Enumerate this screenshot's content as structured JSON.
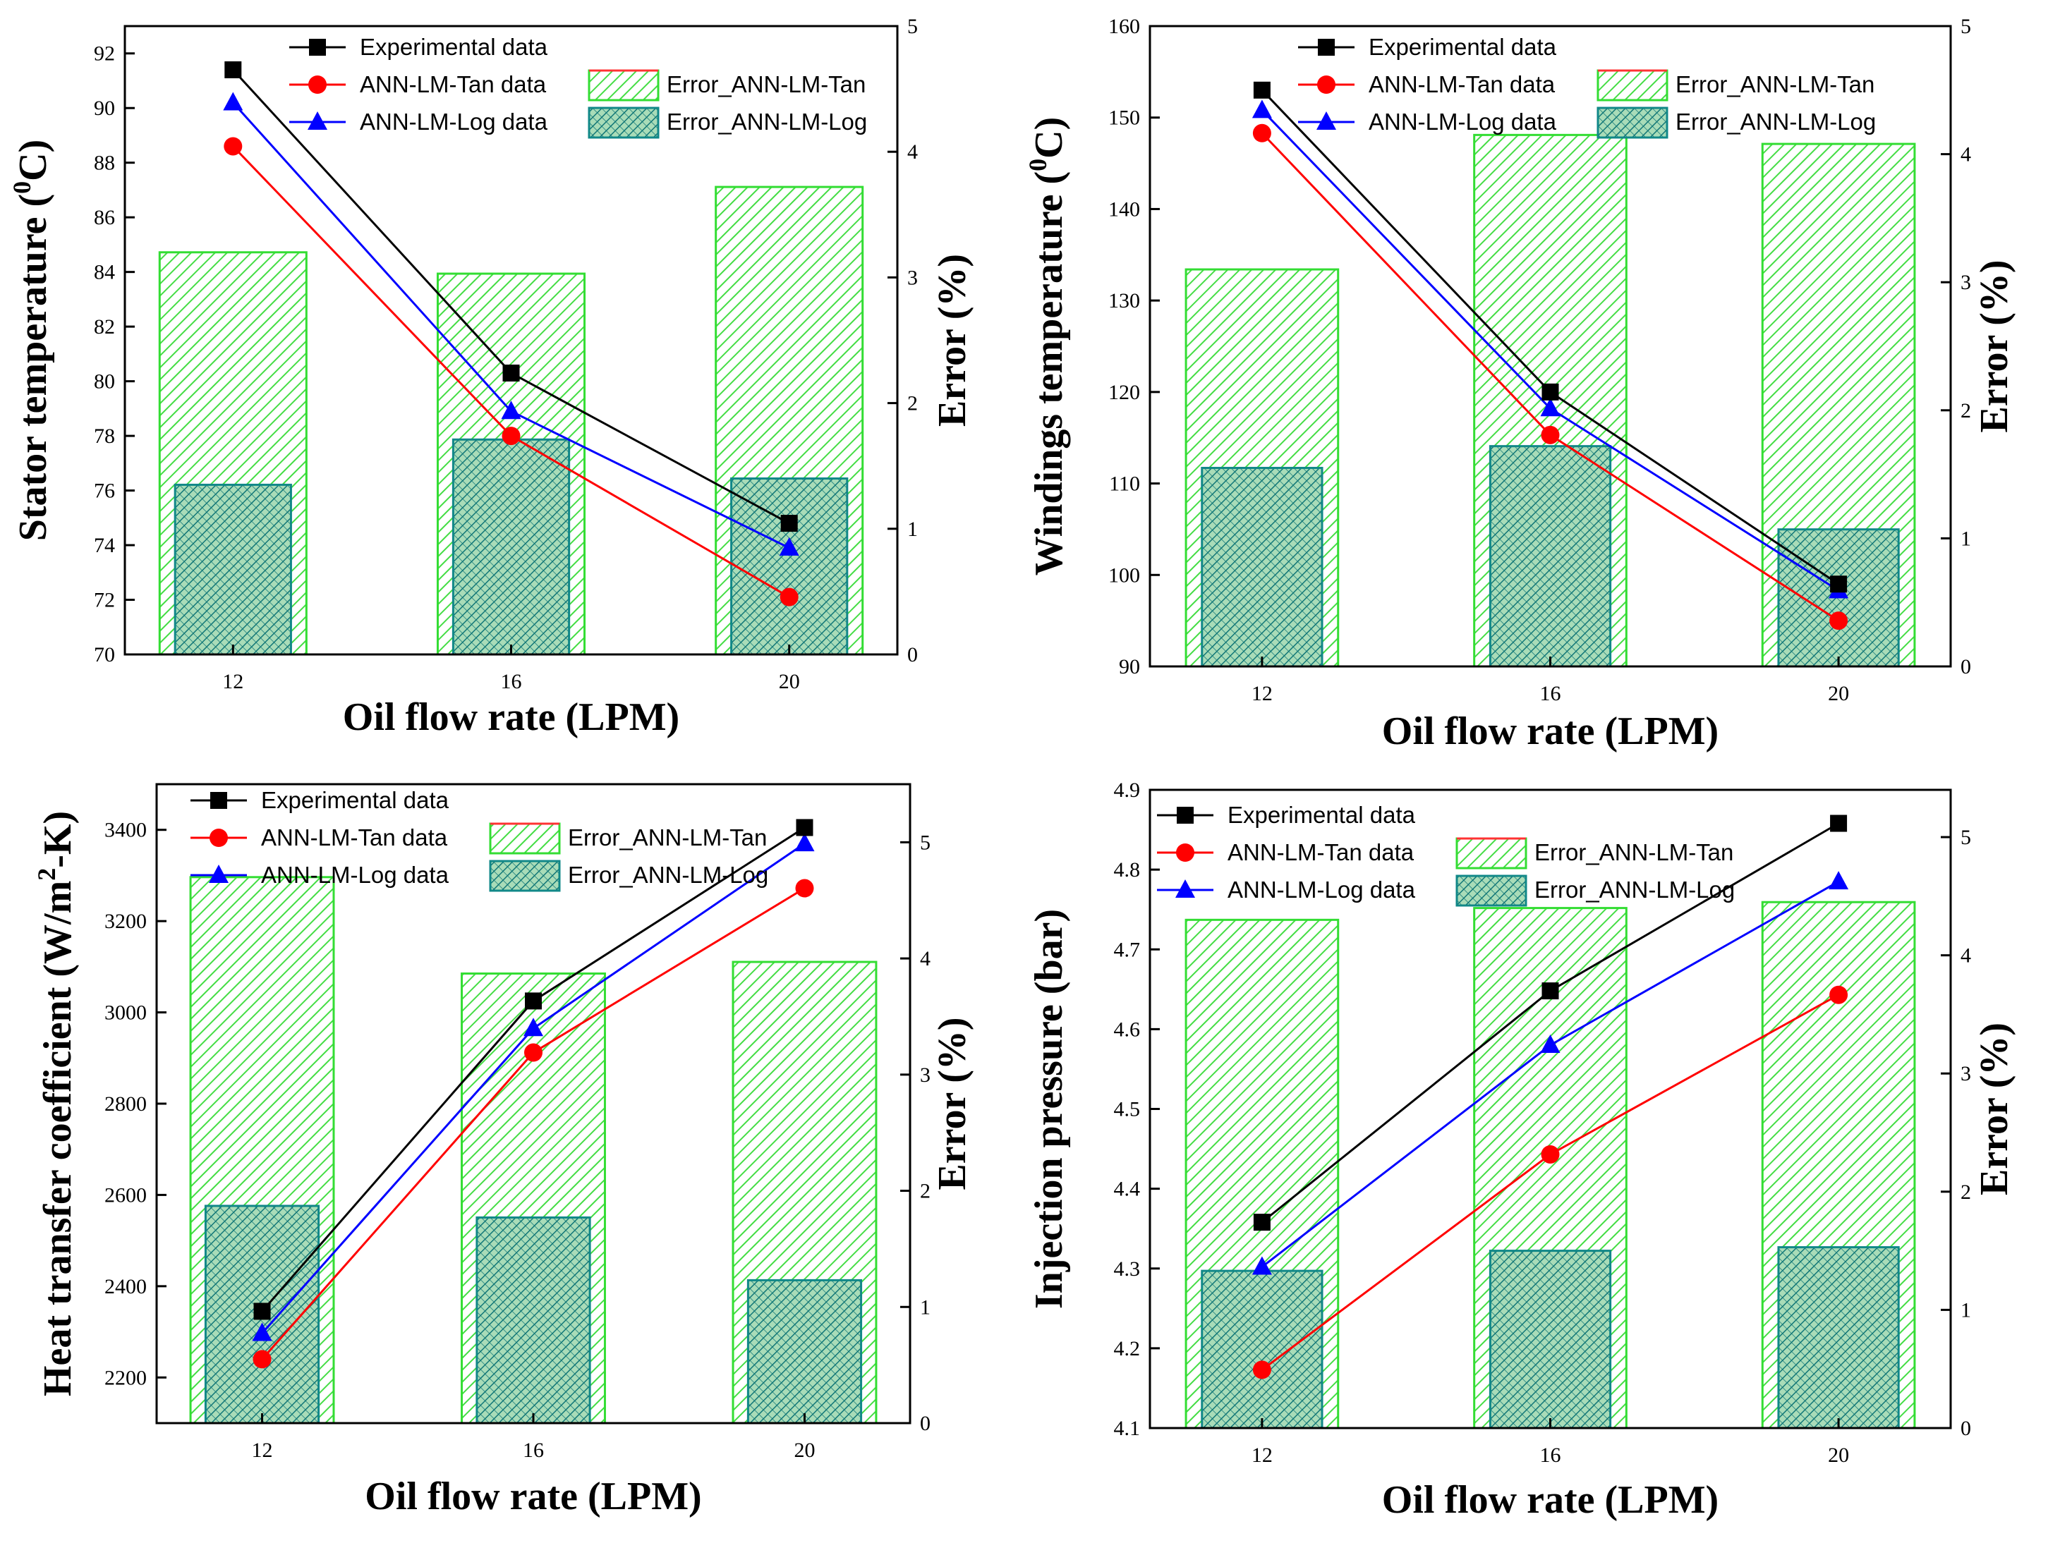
{
  "colors": {
    "experimental": "#000000",
    "ann_tan": "#ff0000",
    "ann_log": "#0000ff",
    "bar_tan_stroke": "#33dd33",
    "bar_tan_hatch": "#44dd44",
    "bar_log_stroke": "#118888",
    "bar_log_hatch": "#117777"
  },
  "legend": {
    "experimental": "Experimental data",
    "ann_tan": "ANN-LM-Tan data",
    "ann_log": "ANN-LM-Log data",
    "error_tan": "Error_ANN-LM-Tan",
    "error_log": "Error_ANN-LM-Log"
  },
  "chart_data": [
    {
      "type": "bar",
      "id": "stator",
      "xlabel": "Oil flow rate (LPM)",
      "ylabel": {
        "main": "Stator temperature (",
        "sup": "0",
        "tail": "C)"
      },
      "y2label": "Error (%)",
      "categories": [
        "12",
        "16",
        "20"
      ],
      "ylim": [
        70,
        93
      ],
      "yticks": [
        "70",
        "72",
        "74",
        "76",
        "78",
        "80",
        "82",
        "84",
        "86",
        "88",
        "90",
        "92"
      ],
      "y2lim": [
        0,
        5
      ],
      "y2ticks": [
        "0",
        "1",
        "2",
        "3",
        "4",
        "5"
      ],
      "series": [
        {
          "name": "Experimental data",
          "key": "experimental",
          "kind": "line",
          "marker": "square",
          "values": [
            91.4,
            80.3,
            74.8
          ]
        },
        {
          "name": "ANN-LM-Tan data",
          "key": "ann_tan",
          "kind": "line",
          "marker": "circle",
          "values": [
            88.6,
            78.0,
            72.1
          ]
        },
        {
          "name": "ANN-LM-Log data",
          "key": "ann_log",
          "kind": "line",
          "marker": "triangle",
          "values": [
            90.2,
            78.9,
            73.9
          ]
        },
        {
          "name": "Error_ANN-LM-Tan",
          "key": "error_tan",
          "kind": "bar",
          "values": [
            3.2,
            3.03,
            3.72
          ]
        },
        {
          "name": "Error_ANN-LM-Log",
          "key": "error_log",
          "kind": "bar",
          "values": [
            1.35,
            1.71,
            1.4
          ]
        }
      ]
    },
    {
      "type": "bar",
      "id": "windings",
      "xlabel": "Oil flow rate (LPM)",
      "ylabel": {
        "main": "Windings temperature (",
        "sup": "0",
        "tail": "C)"
      },
      "y2label": "Error (%)",
      "categories": [
        "12",
        "16",
        "20"
      ],
      "ylim": [
        90,
        160
      ],
      "yticks": [
        "90",
        "100",
        "110",
        "120",
        "130",
        "140",
        "150",
        "160"
      ],
      "y2lim": [
        0,
        5
      ],
      "y2ticks": [
        "0",
        "1",
        "2",
        "3",
        "4",
        "5"
      ],
      "series": [
        {
          "name": "Experimental data",
          "key": "experimental",
          "kind": "line",
          "marker": "square",
          "values": [
            153,
            120,
            99
          ]
        },
        {
          "name": "ANN-LM-Tan data",
          "key": "ann_tan",
          "kind": "line",
          "marker": "circle",
          "values": [
            148.3,
            115.3,
            95
          ]
        },
        {
          "name": "ANN-LM-Log data",
          "key": "ann_log",
          "kind": "line",
          "marker": "triangle",
          "values": [
            150.8,
            118.2,
            98.3
          ]
        },
        {
          "name": "Error_ANN-LM-Tan",
          "key": "error_tan",
          "kind": "bar",
          "values": [
            3.1,
            4.15,
            4.08
          ]
        },
        {
          "name": "Error_ANN-LM-Log",
          "key": "error_log",
          "kind": "bar",
          "values": [
            1.55,
            1.72,
            1.07
          ]
        }
      ]
    },
    {
      "type": "bar",
      "id": "htc",
      "xlabel": "Oil flow rate (LPM)",
      "ylabel": {
        "main": "Heat transfer coefficient (W/m",
        "sup": "2",
        "tail": "-K)"
      },
      "y2label": "Error (%)",
      "categories": [
        "12",
        "16",
        "20"
      ],
      "ylim": [
        2100,
        3500
      ],
      "yticks": [
        "2200",
        "2400",
        "2600",
        "2800",
        "3000",
        "3200",
        "3400"
      ],
      "y2lim": [
        0,
        5.5
      ],
      "y2ticks": [
        "0",
        "1",
        "2",
        "3",
        "4",
        "5"
      ],
      "series": [
        {
          "name": "Experimental data",
          "key": "experimental",
          "kind": "line",
          "marker": "square",
          "values": [
            2345,
            3025,
            3405
          ]
        },
        {
          "name": "ANN-LM-Tan data",
          "key": "ann_tan",
          "kind": "line",
          "marker": "circle",
          "values": [
            2240,
            2912,
            3272
          ]
        },
        {
          "name": "ANN-LM-Log data",
          "key": "ann_log",
          "kind": "line",
          "marker": "triangle",
          "values": [
            2297,
            2965,
            3370
          ]
        },
        {
          "name": "Error_ANN-LM-Tan",
          "key": "error_tan",
          "kind": "bar",
          "values": [
            4.7,
            3.87,
            3.97
          ]
        },
        {
          "name": "Error_ANN-LM-Log",
          "key": "error_log",
          "kind": "bar",
          "values": [
            1.87,
            1.77,
            1.23
          ]
        }
      ]
    },
    {
      "type": "bar",
      "id": "injection",
      "xlabel": "Oil flow rate (LPM)",
      "ylabel": {
        "main": "Injection pressure (bar)",
        "sup": "",
        "tail": ""
      },
      "y2label": "Error (%)",
      "categories": [
        "12",
        "16",
        "20"
      ],
      "ylim": [
        4.1,
        4.9
      ],
      "yticks": [
        "4.1",
        "4.2",
        "4.3",
        "4.4",
        "4.5",
        "4.6",
        "4.7",
        "4.8",
        "4.9"
      ],
      "y2lim": [
        0,
        5.4
      ],
      "y2ticks": [
        "0",
        "1",
        "2",
        "3",
        "4",
        "5"
      ],
      "series": [
        {
          "name": "Experimental data",
          "key": "experimental",
          "kind": "line",
          "marker": "square",
          "values": [
            4.358,
            4.648,
            4.858
          ]
        },
        {
          "name": "ANN-LM-Tan data",
          "key": "ann_tan",
          "kind": "line",
          "marker": "circle",
          "values": [
            4.173,
            4.443,
            4.643
          ]
        },
        {
          "name": "ANN-LM-Log data",
          "key": "ann_log",
          "kind": "line",
          "marker": "triangle",
          "values": [
            4.302,
            4.58,
            4.785
          ]
        },
        {
          "name": "Error_ANN-LM-Tan",
          "key": "error_tan",
          "kind": "bar",
          "values": [
            4.3,
            4.4,
            4.45
          ]
        },
        {
          "name": "Error_ANN-LM-Log",
          "key": "error_log",
          "kind": "bar",
          "values": [
            1.33,
            1.5,
            1.53
          ]
        }
      ]
    }
  ]
}
